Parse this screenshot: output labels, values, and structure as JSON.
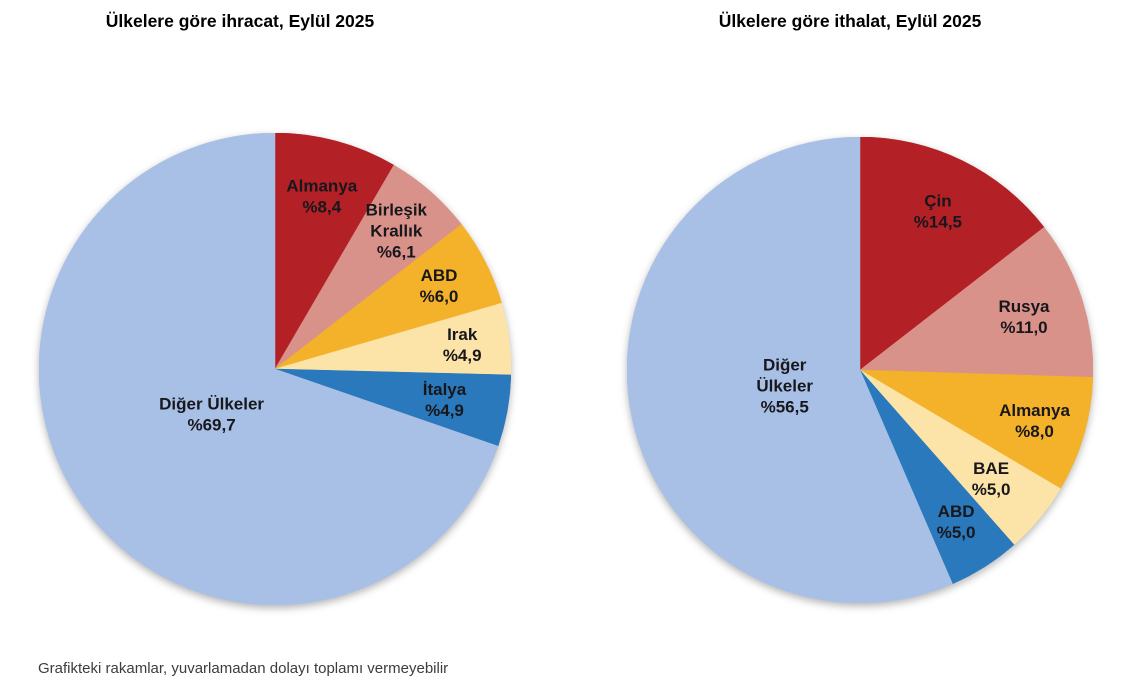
{
  "page": {
    "background": "#ffffff",
    "footnote": "Grafikteki rakamlar, yuvarlamadan dolayı toplamı vermeyebilir"
  },
  "colors": {
    "dark_red": "#B32025",
    "salmon": "#D9928A",
    "gold": "#F3B229",
    "cream": "#FCE3A7",
    "blue": "#2979BC",
    "periwinkle": "#A9C0E6",
    "label_text": "#17171c",
    "title_text": "#000000"
  },
  "chart_data": [
    {
      "type": "pie",
      "title": "Ülkelere göre ihracat, Eylül 2025",
      "unit": "percent",
      "start_angle_deg": 0,
      "direction": "clockwise",
      "legend_position": "none",
      "labels_inside": true,
      "slices": [
        {
          "label": "Almanya",
          "value": 8.4,
          "value_text": "%8,4",
          "label_lines": [
            "Almanya",
            "%8,4"
          ],
          "color": "#B32025",
          "label_r": 0.76
        },
        {
          "label": "Birleşik Krallık",
          "value": 6.1,
          "value_text": "%6,1",
          "label_lines": [
            "Birleşik",
            "Krallık",
            "%6,1"
          ],
          "color": "#D9928A",
          "label_r": 0.78
        },
        {
          "label": "ABD",
          "value": 6.0,
          "value_text": "%6,0",
          "label_lines": [
            "ABD",
            "%6,0"
          ],
          "color": "#F3B229",
          "label_r": 0.78
        },
        {
          "label": "Irak",
          "value": 4.9,
          "value_text": "%4,9",
          "label_lines": [
            "Irak",
            "%4,9"
          ],
          "color": "#FCE3A7",
          "label_r": 0.8
        },
        {
          "label": "İtalya",
          "value": 4.9,
          "value_text": "%4,9",
          "label_lines": [
            "İtalya",
            "%4,9"
          ],
          "color": "#2979BC",
          "label_r": 0.73
        },
        {
          "label": "Diğer Ülkeler",
          "value": 69.7,
          "value_text": "%69,7",
          "label_lines": [
            "Diğer Ülkeler",
            "%69,7"
          ],
          "color": "#A9C0E6",
          "label_r": 0.33
        }
      ]
    },
    {
      "type": "pie",
      "title": "Ülkelere göre ithalat, Eylül 2025",
      "unit": "percent",
      "start_angle_deg": 0,
      "direction": "clockwise",
      "legend_position": "none",
      "labels_inside": true,
      "slices": [
        {
          "label": "Çin",
          "value": 14.5,
          "value_text": "%14,5",
          "label_lines": [
            "Çin",
            "%14,5"
          ],
          "color": "#B32025",
          "label_r": 0.76
        },
        {
          "label": "Rusya",
          "value": 11.0,
          "value_text": "%11,0",
          "label_lines": [
            "Rusya",
            "%11,0"
          ],
          "color": "#D9928A",
          "label_r": 0.74
        },
        {
          "label": "Almanya",
          "value": 8.0,
          "value_text": "%8,0",
          "label_lines": [
            "Almanya",
            "%8,0"
          ],
          "color": "#F3B229",
          "label_r": 0.78
        },
        {
          "label": "BAE",
          "value": 5.0,
          "value_text": "%5,0",
          "label_lines": [
            "BAE",
            "%5,0"
          ],
          "color": "#FCE3A7",
          "label_r": 0.73
        },
        {
          "label": "ABD",
          "value": 5.0,
          "value_text": "%5,0",
          "label_lines": [
            "ABD",
            "%5,0"
          ],
          "color": "#2979BC",
          "label_r": 0.77
        },
        {
          "label": "Diğer Ülkeler",
          "value": 56.5,
          "value_text": "%56,5",
          "label_lines": [
            "Diğer",
            "Ülkeler",
            "%56,5"
          ],
          "color": "#A9C0E6",
          "label_r": 0.33
        }
      ]
    }
  ]
}
